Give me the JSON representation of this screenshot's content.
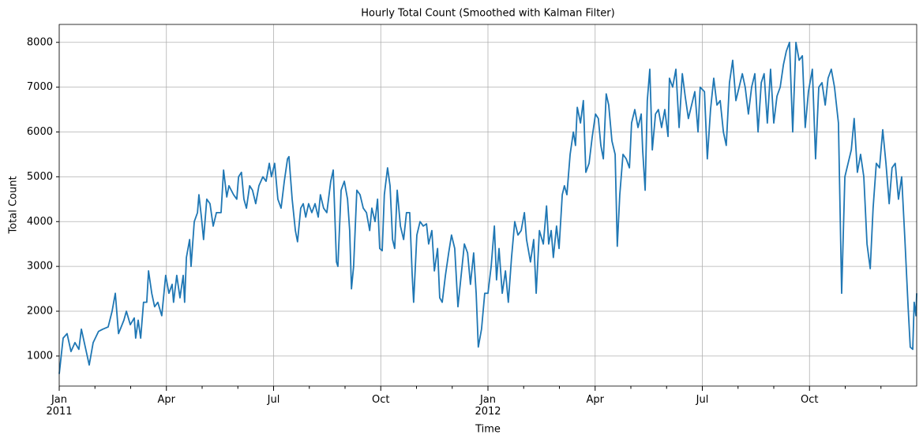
{
  "chart_data": {
    "type": "line",
    "title": "Hourly Total Count (Smoothed with Kalman Filter)",
    "xlabel": "Time",
    "ylabel": "Total Count",
    "color": "#1f77b4",
    "grid": true,
    "xlim": [
      0,
      24
    ],
    "ylim": [
      330,
      8400
    ],
    "yticks": [
      1000,
      2000,
      3000,
      4000,
      5000,
      6000,
      7000,
      8000
    ],
    "xticks": [
      {
        "value": 0,
        "label": "Jan\n2011"
      },
      {
        "value": 3,
        "label": "Apr"
      },
      {
        "value": 6,
        "label": "Jul"
      },
      {
        "value": 9,
        "label": "Oct"
      },
      {
        "value": 12,
        "label": "Jan\n2012"
      },
      {
        "value": 15,
        "label": "Apr"
      },
      {
        "value": 18,
        "label": "Jul"
      },
      {
        "value": 21,
        "label": "Oct"
      }
    ],
    "xminorticks": [
      1,
      2,
      4,
      5,
      7,
      8,
      10,
      11,
      13,
      14,
      16,
      17,
      19,
      20,
      22,
      23
    ],
    "x": [
      0,
      0.11,
      0.22,
      0.33,
      0.44,
      0.55,
      0.62,
      0.73,
      0.84,
      0.95,
      1.1,
      1.22,
      1.37,
      1.48,
      1.57,
      1.66,
      1.81,
      1.88,
      1.99,
      2.1,
      2.14,
      2.21,
      2.28,
      2.36,
      2.45,
      2.5,
      2.59,
      2.67,
      2.76,
      2.87,
      2.98,
      3.07,
      3.16,
      3.2,
      3.29,
      3.38,
      3.47,
      3.51,
      3.56,
      3.65,
      3.69,
      3.78,
      3.87,
      3.91,
      3.98,
      4.04,
      4.13,
      4.22,
      4.31,
      4.4,
      4.53,
      4.6,
      4.69,
      4.75,
      4.88,
      4.97,
      5.02,
      5.1,
      5.17,
      5.24,
      5.33,
      5.41,
      5.5,
      5.59,
      5.7,
      5.79,
      5.88,
      5.94,
      6.03,
      6.12,
      6.21,
      6.3,
      6.39,
      6.43,
      6.52,
      6.61,
      6.67,
      6.76,
      6.83,
      6.9,
      6.98,
      7.07,
      7.16,
      7.25,
      7.31,
      7.4,
      7.49,
      7.6,
      7.67,
      7.76,
      7.8,
      7.89,
      7.98,
      8.07,
      8.13,
      8.18,
      8.24,
      8.33,
      8.42,
      8.51,
      8.6,
      8.69,
      8.75,
      8.84,
      8.91,
      8.97,
      9.04,
      9.1,
      9.19,
      9.26,
      9.33,
      9.39,
      9.46,
      9.55,
      9.64,
      9.72,
      9.81,
      9.88,
      9.92,
      10.01,
      10.1,
      10.19,
      10.28,
      10.34,
      10.43,
      10.5,
      10.59,
      10.65,
      10.72,
      10.81,
      10.9,
      10.98,
      11.07,
      11.16,
      11.25,
      11.34,
      11.43,
      11.51,
      11.6,
      11.67,
      11.73,
      11.82,
      11.91,
      12.0,
      12.09,
      12.18,
      12.24,
      12.31,
      12.4,
      12.49,
      12.57,
      12.66,
      12.75,
      12.84,
      12.93,
      13.02,
      13.08,
      13.19,
      13.28,
      13.35,
      13.44,
      13.55,
      13.64,
      13.7,
      13.77,
      13.83,
      13.92,
      13.99,
      14.08,
      14.14,
      14.21,
      14.3,
      14.39,
      14.45,
      14.5,
      14.59,
      14.67,
      14.74,
      14.83,
      14.92,
      15.01,
      15.09,
      15.16,
      15.23,
      15.31,
      15.38,
      15.47,
      15.56,
      15.62,
      15.69,
      15.78,
      15.87,
      15.96,
      16.02,
      16.11,
      16.2,
      16.29,
      16.33,
      16.4,
      16.46,
      16.53,
      16.6,
      16.69,
      16.77,
      16.86,
      16.95,
      17.04,
      17.08,
      17.17,
      17.26,
      17.35,
      17.44,
      17.52,
      17.61,
      17.7,
      17.79,
      17.88,
      17.94,
      18.06,
      18.14,
      18.23,
      18.32,
      18.41,
      18.5,
      18.59,
      18.67,
      18.76,
      18.85,
      18.94,
      19.03,
      19.12,
      19.2,
      19.29,
      19.38,
      19.47,
      19.56,
      19.65,
      19.73,
      19.82,
      19.91,
      20.0,
      20.09,
      20.18,
      20.27,
      20.35,
      20.44,
      20.53,
      20.62,
      20.71,
      20.8,
      20.88,
      20.97,
      21.08,
      21.17,
      21.26,
      21.35,
      21.44,
      21.52,
      21.61,
      21.7,
      21.81,
      21.9,
      21.99,
      22.08,
      22.17,
      22.25,
      22.34,
      22.43,
      22.52,
      22.61,
      22.7,
      22.78,
      22.87,
      22.96,
      23.05,
      23.14,
      23.23,
      23.31,
      23.4,
      23.49,
      23.58,
      23.67,
      23.76,
      23.82,
      23.89,
      23.93,
      23.98,
      24.0
    ],
    "values": [
      600,
      1400,
      1500,
      1100,
      1300,
      1150,
      1600,
      1200,
      800,
      1300,
      1550,
      1600,
      1650,
      2000,
      2400,
      1500,
      1800,
      2000,
      1700,
      1850,
      1400,
      1800,
      1400,
      2200,
      2200,
      2900,
      2400,
      2100,
      2200,
      1900,
      2800,
      2400,
      2600,
      2200,
      2800,
      2300,
      2800,
      2200,
      3200,
      3600,
      3000,
      4000,
      4200,
      4600,
      4100,
      3600,
      4500,
      4400,
      3900,
      4200,
      4200,
      5150,
      4550,
      4800,
      4600,
      4500,
      5000,
      5100,
      4500,
      4300,
      4800,
      4700,
      4400,
      4800,
      5000,
      4900,
      5300,
      5000,
      5300,
      4500,
      4300,
      4900,
      5400,
      5450,
      4500,
      3800,
      3550,
      4300,
      4400,
      4100,
      4400,
      4200,
      4400,
      4100,
      4600,
      4300,
      4200,
      4900,
      5150,
      3100,
      3000,
      4700,
      4900,
      4500,
      3800,
      2500,
      3000,
      4700,
      4600,
      4300,
      4200,
      3800,
      4300,
      4000,
      4500,
      3400,
      3350,
      4600,
      5200,
      4800,
      3600,
      3400,
      4700,
      3900,
      3600,
      4200,
      4200,
      2800,
      2200,
      3700,
      4000,
      3900,
      3950,
      3500,
      3800,
      2900,
      3400,
      2300,
      2200,
      2800,
      3300,
      3700,
      3400,
      2100,
      2800,
      3500,
      3300,
      2600,
      3300,
      2400,
      1200,
      1600,
      2400,
      2400,
      3000,
      3900,
      2700,
      3400,
      2400,
      2900,
      2200,
      3200,
      4000,
      3700,
      3800,
      4200,
      3600,
      3100,
      3600,
      2400,
      3800,
      3500,
      4350,
      3500,
      3800,
      3200,
      3900,
      3400,
      4600,
      4800,
      4600,
      5500,
      6000,
      5700,
      6550,
      6200,
      6700,
      5100,
      5300,
      5900,
      6400,
      6300,
      5700,
      5400,
      6850,
      6600,
      5800,
      5500,
      3450,
      4600,
      5500,
      5400,
      5200,
      6200,
      6500,
      6100,
      6400,
      5600,
      4700,
      6700,
      7400,
      5600,
      6400,
      6500,
      6100,
      6500,
      5900,
      7200,
      7000,
      7400,
      6100,
      7300,
      6800,
      6300,
      6600,
      6900,
      6000,
      7000,
      6900,
      5400,
      6500,
      7200,
      6600,
      6700,
      6000,
      5700,
      7100,
      7600,
      6700,
      7000,
      7300,
      7000,
      6400,
      7000,
      7300,
      6000,
      7100,
      7300,
      6200,
      7400,
      6200,
      6800,
      7000,
      7500,
      7800,
      8000,
      6000,
      8000,
      7600,
      7700,
      6100,
      6900,
      7400,
      5400,
      7000,
      7100,
      6600,
      7200,
      7400,
      7000,
      6200,
      2400,
      5000,
      5300,
      5600,
      6300,
      5100,
      5500,
      5000,
      3500,
      2950,
      4300,
      5300,
      5200,
      6050,
      5300,
      4400,
      5200,
      5300,
      4500,
      5000,
      3600,
      2100,
      1200,
      1150,
      2200,
      1900,
      2400
    ]
  }
}
